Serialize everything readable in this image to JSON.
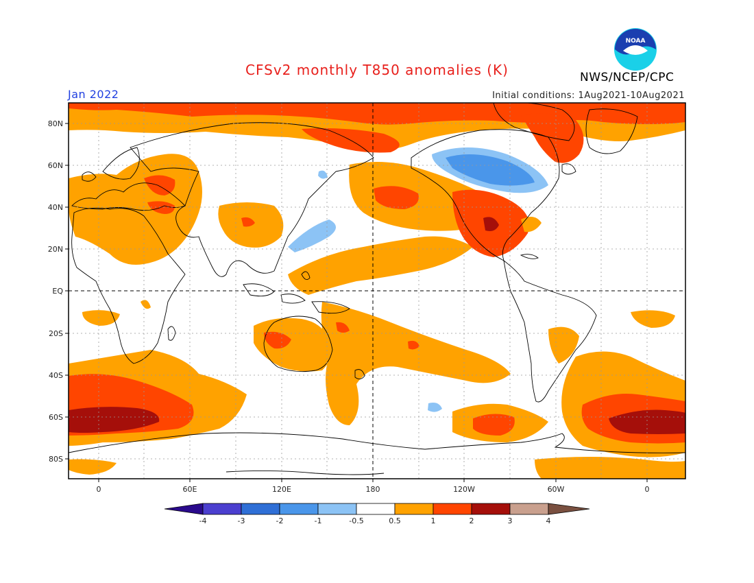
{
  "header": {
    "title": "CFSv2 monthly T850 anomalies (K)",
    "month": "Jan 2022",
    "initial_conditions": "Initial conditions: 1Aug2021-10Aug2021",
    "agency": "NWS/NCEP/CPC",
    "logo_text": "NOAA"
  },
  "axes": {
    "y_ticks": [
      "80N",
      "60N",
      "40N",
      "20N",
      "EQ",
      "20S",
      "40S",
      "60S",
      "80S"
    ],
    "x_ticks": [
      "0",
      "60E",
      "120E",
      "180",
      "120W",
      "60W",
      "0"
    ]
  },
  "colorbar": {
    "tick_labels": [
      "-4",
      "-3",
      "-2",
      "-1",
      "-0.5",
      "0.5",
      "1",
      "2",
      "3",
      "4"
    ],
    "colors": {
      "below_-4": "#2a0a8c",
      "-4_-3": "#4b3fcf",
      "-3_-2": "#2f6fd6",
      "-2_-1": "#4a96ea",
      "-1_-0.5": "#8cc3f5",
      "-0.5_0.5": "#ffffff",
      "0.5_1": "#ffa200",
      "1_2": "#ff4500",
      "2_3": "#a50f0a",
      "3_4": "#c9a08e",
      "above_4": "#7a5040"
    }
  }
}
